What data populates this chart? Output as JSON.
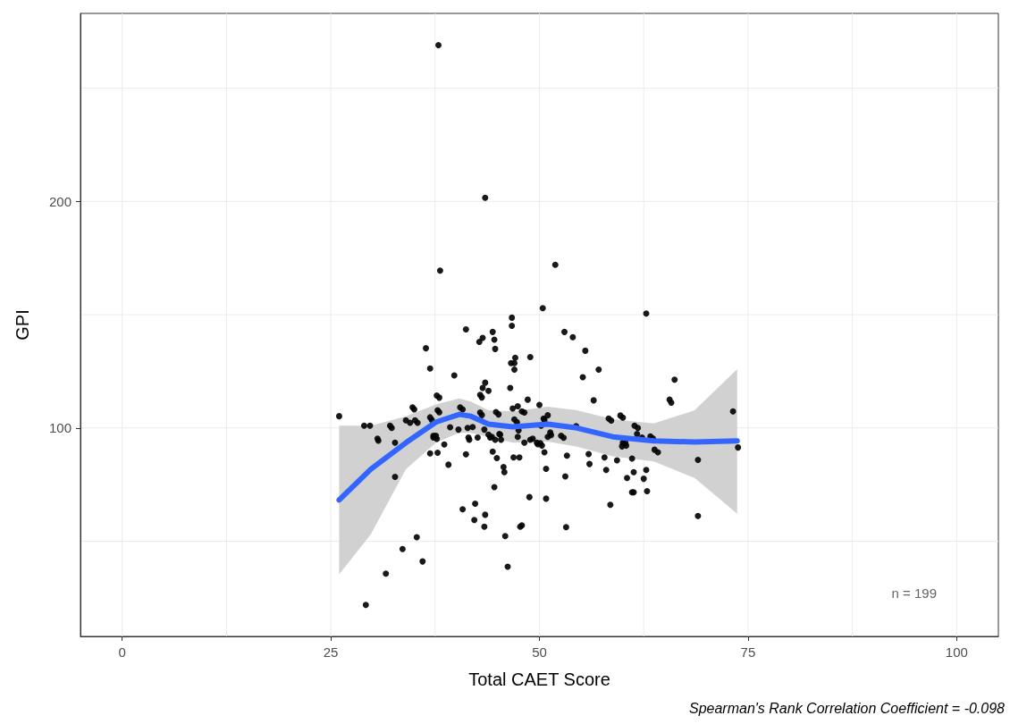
{
  "chart_data": {
    "type": "scatter",
    "xlabel": "Total CAET Score",
    "ylabel": "GPI",
    "annotations": [
      "n = 199",
      "Spearman's Rank Correlation Coefficient = -0.098"
    ],
    "xlim": [
      -5,
      105
    ],
    "ylim": [
      8,
      283
    ],
    "xticks": [
      0,
      {
        "value": 12.5,
        "label": null
      },
      25,
      {
        "value": 37.5,
        "label": null
      },
      50,
      {
        "value": 62.5,
        "label": null
      },
      75,
      {
        "value": 87.5,
        "label": null
      },
      100
    ],
    "yticks": [
      {
        "value": 50,
        "label": null
      },
      100,
      {
        "value": 150,
        "label": null
      },
      200,
      {
        "value": 250,
        "label": null
      }
    ],
    "grid": true,
    "marker": "circle",
    "series": [
      {
        "color": "#000000",
        "x": [
          37.9,
          43.5,
          38.1,
          51.9,
          62.8,
          50.4,
          46.7,
          46.7,
          41.2,
          53.0,
          44.4,
          44.6,
          43.2,
          42.8,
          54.0,
          36.4,
          44.7,
          55.5,
          48.9,
          47.1,
          47.0,
          46.6,
          36.9,
          57.1,
          47.0,
          55.2,
          39.8,
          66.2,
          43.5,
          43.2,
          43.9,
          46.5,
          37.7,
          42.9,
          43.1,
          48.6,
          56.5,
          65.6,
          65.8,
          47.4,
          34.8,
          40.5,
          50.0,
          46.8,
          42.9,
          44.8,
          47.9,
          26.0,
          59.7,
          73.2,
          34.0,
          35.1,
          36.9,
          37.8,
          29.0,
          29.7,
          32.1,
          50.5,
          50.2,
          61.4,
          30.6,
          32.7,
          37.3,
          37.6,
          38.6,
          41.5,
          41.6,
          43.9,
          44.3,
          44.7,
          45.2,
          47.5,
          47.4,
          48.9,
          49.7,
          50.1,
          51.0,
          52.6,
          54.4,
          58.3,
          60.0,
          60.3,
          61.7,
          63.3,
          63.8,
          73.8,
          69.0,
          36.9,
          37.8,
          39.1,
          41.2,
          44.4,
          44.9,
          46.9,
          47.6,
          50.6,
          53.3,
          55.9,
          56.0,
          57.8,
          59.3,
          61.1,
          50.8,
          53.1,
          58.0,
          60.5,
          61.3,
          62.8,
          62.5,
          45.7,
          45.8,
          44.6,
          32.7,
          62.9,
          61.1,
          61.3,
          58.5,
          48.8,
          50.8,
          69.0,
          40.8,
          42.3,
          42.2,
          43.5,
          43.4,
          45.9,
          47.7,
          47.9,
          53.2,
          46.2,
          35.3,
          33.6,
          36.0,
          31.6,
          29.2,
          35.0,
          38.0,
          38.0,
          37.1,
          34.5,
          35.4,
          32.3,
          30.7,
          37.3,
          37.7,
          39.3,
          40.3,
          41.4,
          40.8,
          42.0,
          42.6,
          43.1,
          43.4,
          44.1,
          45.3,
          45.4,
          45.1,
          47.0,
          47.3,
          48.2,
          50.6,
          51.0,
          51.3,
          52.9,
          49.2,
          49.8,
          50.3,
          48.2,
          58.6,
          60.0,
          61.8,
          62.3,
          63.6,
          64.2,
          51.4,
          60.4,
          59.9
        ],
        "values": [
          269,
          201.6,
          169.5,
          172,
          150.5,
          152.9,
          148.7,
          145.1,
          143.5,
          142.4,
          142.4,
          139,
          139.8,
          138,
          140.1,
          135.2,
          134.9,
          134.1,
          131.3,
          131,
          128.6,
          128.6,
          126.3,
          125.8,
          125.8,
          122.4,
          123.2,
          121.3,
          120,
          117.7,
          116.4,
          117.7,
          114.3,
          114.6,
          113.5,
          112.5,
          112.2,
          112.5,
          111.2,
          109.6,
          109.1,
          109.1,
          110.2,
          108.6,
          106.8,
          107,
          107.3,
          105.2,
          105.5,
          107.3,
          103.4,
          103.4,
          104.7,
          107.8,
          101,
          101,
          101,
          104.2,
          101,
          101,
          95.3,
          93.5,
          96.6,
          96.6,
          92.7,
          95.8,
          94.8,
          97.1,
          96.1,
          94.8,
          97.4,
          99,
          96.1,
          94.8,
          93.5,
          93.3,
          96.1,
          96.6,
          100.8,
          104.2,
          93.5,
          93.5,
          97.4,
          96.3,
          90.4,
          91.4,
          85.9,
          88.8,
          89.1,
          83.8,
          88.4,
          89.6,
          86.7,
          87,
          87,
          89.3,
          87.8,
          88.5,
          84.1,
          87,
          85.7,
          86.5,
          82,
          78.6,
          81.5,
          77.9,
          80.5,
          81.5,
          77.6,
          82.8,
          80.5,
          73.9,
          78.4,
          72.1,
          71.6,
          71.6,
          66.1,
          69.5,
          68.8,
          61.2,
          64.1,
          66.6,
          59.4,
          61.7,
          56.4,
          52.3,
          56.4,
          57,
          56.2,
          38.8,
          51.8,
          46.6,
          41.1,
          35.7,
          21.9,
          108.2,
          113.4,
          106.9,
          103.6,
          102.3,
          102.3,
          100,
          94.4,
          95.8,
          95.2,
          100.3,
          99.3,
          100,
          108.2,
          100.4,
          95.8,
          105.7,
          99.3,
          95.8,
          97.1,
          94.8,
          106,
          103.8,
          102.6,
          106.8,
          103.5,
          105.6,
          98,
          95.7,
          95.3,
          92.8,
          92.2,
          93.5,
          103.3,
          104.6,
          100,
          95.8,
          95.4,
          89.3,
          96.9,
          92.2,
          91.9
        ]
      },
      {
        "type": "line",
        "color": "#3366ff",
        "marker": "none",
        "x": [
          26.0,
          29.8,
          34.0,
          37.6,
          40.4,
          41.8,
          43.9,
          46.8,
          51.0,
          54.5,
          58.8,
          63.7,
          68.6,
          73.7
        ],
        "values": [
          68.2,
          81.8,
          93.5,
          102.6,
          106,
          105.2,
          101.7,
          100.5,
          101.7,
          100,
          96.1,
          94.3,
          93.8,
          94.3
        ],
        "lower": [
          35.4,
          53.1,
          81.8,
          93.5,
          97.9,
          97.9,
          96.1,
          93.5,
          94,
          91.7,
          87.5,
          85.2,
          77.9,
          62.2
        ],
        "upper": [
          101,
          101,
          105.2,
          110.4,
          113,
          111.7,
          107.8,
          107.3,
          109.4,
          107.8,
          103.9,
          102,
          107.8,
          126
        ]
      }
    ]
  }
}
